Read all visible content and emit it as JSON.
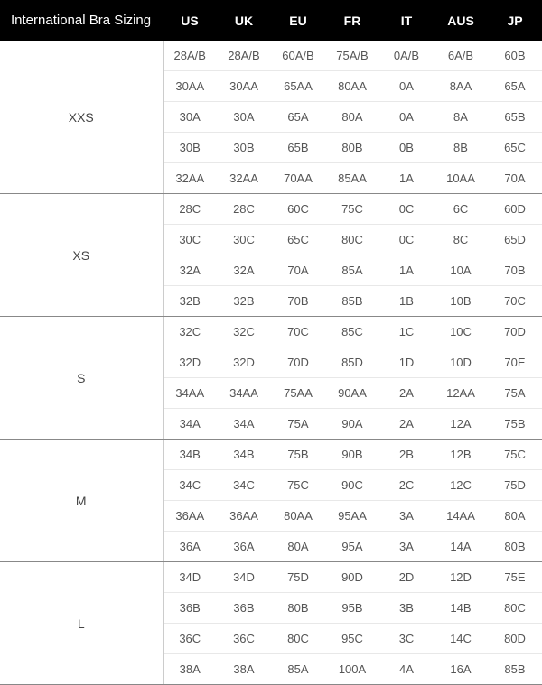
{
  "title": "International Bra Sizing",
  "columns": [
    "US",
    "UK",
    "EU",
    "FR",
    "IT",
    "AUS",
    "JP"
  ],
  "groups": [
    {
      "size": "XXS",
      "rows": [
        [
          "28A/B",
          "28A/B",
          "60A/B",
          "75A/B",
          "0A/B",
          "6A/B",
          "60B"
        ],
        [
          "30AA",
          "30AA",
          "65AA",
          "80AA",
          "0A",
          "8AA",
          "65A"
        ],
        [
          "30A",
          "30A",
          "65A",
          "80A",
          "0A",
          "8A",
          "65B"
        ],
        [
          "30B",
          "30B",
          "65B",
          "80B",
          "0B",
          "8B",
          "65C"
        ],
        [
          "32AA",
          "32AA",
          "70AA",
          "85AA",
          "1A",
          "10AA",
          "70A"
        ]
      ]
    },
    {
      "size": "XS",
      "rows": [
        [
          "28C",
          "28C",
          "60C",
          "75C",
          "0C",
          "6C",
          "60D"
        ],
        [
          "30C",
          "30C",
          "65C",
          "80C",
          "0C",
          "8C",
          "65D"
        ],
        [
          "32A",
          "32A",
          "70A",
          "85A",
          "1A",
          "10A",
          "70B"
        ],
        [
          "32B",
          "32B",
          "70B",
          "85B",
          "1B",
          "10B",
          "70C"
        ]
      ]
    },
    {
      "size": "S",
      "rows": [
        [
          "32C",
          "32C",
          "70C",
          "85C",
          "1C",
          "10C",
          "70D"
        ],
        [
          "32D",
          "32D",
          "70D",
          "85D",
          "1D",
          "10D",
          "70E"
        ],
        [
          "34AA",
          "34AA",
          "75AA",
          "90AA",
          "2A",
          "12AA",
          "75A"
        ],
        [
          "34A",
          "34A",
          "75A",
          "90A",
          "2A",
          "12A",
          "75B"
        ]
      ]
    },
    {
      "size": "M",
      "rows": [
        [
          "34B",
          "34B",
          "75B",
          "90B",
          "2B",
          "12B",
          "75C"
        ],
        [
          "34C",
          "34C",
          "75C",
          "90C",
          "2C",
          "12C",
          "75D"
        ],
        [
          "36AA",
          "36AA",
          "80AA",
          "95AA",
          "3A",
          "14AA",
          "80A"
        ],
        [
          "36A",
          "36A",
          "80A",
          "95A",
          "3A",
          "14A",
          "80B"
        ]
      ]
    },
    {
      "size": "L",
      "rows": [
        [
          "34D",
          "34D",
          "75D",
          "90D",
          "2D",
          "12D",
          "75E"
        ],
        [
          "36B",
          "36B",
          "80B",
          "95B",
          "3B",
          "14B",
          "80C"
        ],
        [
          "36C",
          "36C",
          "80C",
          "95C",
          "3C",
          "14C",
          "80D"
        ],
        [
          "38A",
          "38A",
          "85A",
          "100A",
          "4A",
          "16A",
          "85B"
        ]
      ]
    }
  ],
  "colors": {
    "header_bg": "#000000",
    "header_text": "#ffffff",
    "cell_text": "#555555",
    "row_border": "#e8e8e8",
    "group_border": "#888888"
  }
}
